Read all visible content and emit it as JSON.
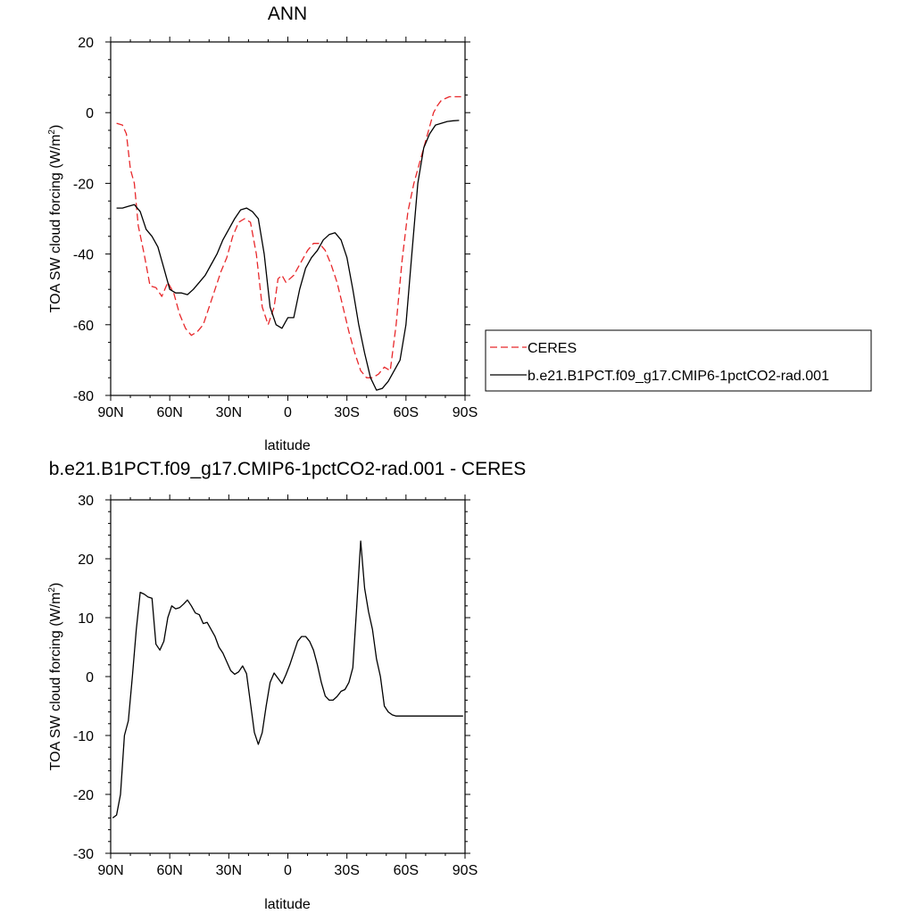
{
  "chart_data": [
    {
      "type": "line",
      "title": "ANN",
      "xlabel": "latitude",
      "ylabel": "TOA SW cloud forcing (W/m",
      "ylabel_sup": "2",
      "ylabel_close": ")",
      "xlim": [
        90,
        -90
      ],
      "ylim": [
        -80,
        20
      ],
      "xticks": [
        90,
        60,
        30,
        0,
        -30,
        -60,
        -90
      ],
      "xtick_labels": [
        "90N",
        "60N",
        "30N",
        "0",
        "30S",
        "60S",
        "90S"
      ],
      "yticks": [
        -80,
        -60,
        -40,
        -20,
        0,
        20
      ],
      "ytick_labels": [
        "-80",
        "-60",
        "-40",
        "-20",
        "0",
        "20"
      ],
      "grid": false,
      "legend": "right",
      "series": [
        {
          "name": "CERES",
          "color": "#e8282b",
          "dash": "dashed",
          "x": [
            87,
            84,
            82,
            80,
            78,
            76,
            73,
            70,
            67,
            64,
            61,
            58,
            55,
            52,
            49,
            46,
            43,
            40,
            37,
            34,
            31,
            28,
            25,
            22,
            19,
            16,
            13,
            10,
            7,
            5,
            3,
            1,
            -1,
            -3,
            -5,
            -7,
            -10,
            -13,
            -16,
            -19,
            -22,
            -25,
            -28,
            -31,
            -34,
            -37,
            -40,
            -43,
            -46,
            -49,
            -52,
            -55,
            -58,
            -61,
            -64,
            -67,
            -70,
            -72,
            -74,
            -76,
            -78,
            -80,
            -82,
            -84,
            -86,
            -88
          ],
          "y": [
            -3,
            -3.5,
            -6,
            -16,
            -20,
            -32,
            -40,
            -49,
            -49.5,
            -52,
            -48,
            -51,
            -57,
            -61,
            -63,
            -62,
            -60,
            -55,
            -50,
            -45,
            -41,
            -35,
            -31,
            -30,
            -31,
            -40,
            -55,
            -60,
            -55,
            -47,
            -46,
            -48,
            -47,
            -46,
            -44,
            -42,
            -39,
            -37,
            -37,
            -39,
            -43,
            -48,
            -55,
            -62,
            -68,
            -73,
            -75,
            -75,
            -74,
            -72,
            -73,
            -60,
            -42,
            -28,
            -20,
            -14,
            -8,
            -4,
            0,
            2,
            3.5,
            4,
            4.5,
            4.5,
            4.5,
            4.5
          ]
        },
        {
          "name": "b.e21.B1PCT.f09_g17.CMIP6-1pctCO2-rad.001",
          "color": "#000000",
          "dash": "solid",
          "x": [
            87,
            84,
            81,
            78,
            75,
            72,
            69,
            66,
            63,
            60,
            57,
            54,
            51,
            48,
            45,
            42,
            39,
            36,
            33,
            30,
            27,
            24,
            21,
            18,
            15,
            12,
            9,
            6,
            3,
            0,
            -3,
            -6,
            -9,
            -12,
            -15,
            -18,
            -21,
            -24,
            -27,
            -30,
            -33,
            -36,
            -39,
            -42,
            -45,
            -48,
            -51,
            -54,
            -57,
            -60,
            -63,
            -66,
            -69,
            -72,
            -75,
            -78,
            -81,
            -84,
            -87
          ],
          "y": [
            -27,
            -27,
            -26.5,
            -26,
            -28,
            -33,
            -35,
            -38,
            -44,
            -50,
            -51,
            -51,
            -51.5,
            -50,
            -48,
            -46,
            -43,
            -40,
            -36,
            -33,
            -30,
            -27.5,
            -27,
            -28,
            -30,
            -40,
            -55,
            -60,
            -61,
            -58,
            -58,
            -50,
            -44,
            -41,
            -39,
            -36,
            -34.5,
            -34,
            -36,
            -41,
            -50,
            -60,
            -68,
            -75,
            -78.5,
            -78,
            -76,
            -73,
            -70,
            -60,
            -40,
            -20,
            -10,
            -6,
            -3.5,
            -3,
            -2.5,
            -2.3,
            -2.2
          ]
        }
      ]
    },
    {
      "type": "line",
      "title": "b.e21.B1PCT.f09_g17.CMIP6-1pctCO2-rad.001 - CERES",
      "xlabel": "latitude",
      "ylabel": "TOA SW cloud forcing (W/m",
      "ylabel_sup": "2",
      "ylabel_close": ")",
      "xlim": [
        90,
        -90
      ],
      "ylim": [
        -30,
        30
      ],
      "xticks": [
        90,
        60,
        30,
        0,
        -30,
        -60,
        -90
      ],
      "xtick_labels": [
        "90N",
        "60N",
        "30N",
        "0",
        "30S",
        "60S",
        "90S"
      ],
      "yticks": [
        -30,
        -20,
        -10,
        0,
        10,
        20,
        30
      ],
      "ytick_labels": [
        "-30",
        "-20",
        "-10",
        "0",
        "10",
        "20",
        "30"
      ],
      "grid": false,
      "series": [
        {
          "color": "#000000",
          "dash": "solid",
          "x": [
            89,
            87,
            85,
            83,
            81,
            79,
            77,
            75,
            73,
            71,
            69,
            67,
            65,
            63,
            61,
            59,
            57,
            55,
            53,
            51,
            49,
            47,
            45,
            43,
            41,
            39,
            37,
            35,
            33,
            31,
            29,
            27,
            25,
            23,
            21,
            19,
            17,
            15,
            13,
            11,
            9,
            7,
            5,
            3,
            1,
            -1,
            -3,
            -5,
            -7,
            -9,
            -11,
            -13,
            -15,
            -17,
            -19,
            -21,
            -23,
            -25,
            -27,
            -29,
            -31,
            -33,
            -35,
            -37,
            -39,
            -41,
            -43,
            -45,
            -47,
            -49,
            -51,
            -53,
            -55,
            -57,
            -59,
            -61,
            -63,
            -65,
            -67,
            -69,
            -71,
            -73,
            -75,
            -77,
            -79,
            -81,
            -83,
            -85,
            -87,
            -89
          ],
          "y": [
            -24,
            -23.5,
            -20,
            -10,
            -7.5,
            0,
            8,
            14.3,
            14,
            13.5,
            13.3,
            5.5,
            4.5,
            6,
            10,
            12,
            11.5,
            11.7,
            12.3,
            13,
            12,
            10.8,
            10.5,
            9,
            9.2,
            8,
            6.8,
            5,
            4,
            2.5,
            1,
            0.4,
            0.8,
            1.8,
            0.5,
            -4.5,
            -9.5,
            -11.5,
            -9.5,
            -5,
            -1,
            0.6,
            -0.3,
            -1.2,
            0.3,
            2,
            4,
            6,
            6.8,
            6.8,
            6,
            4.5,
            2,
            -1,
            -3.3,
            -4,
            -4,
            -3.4,
            -2.5,
            -2.2,
            -1,
            1.5,
            12,
            23,
            15,
            11,
            8,
            3,
            0,
            -5,
            -6,
            -6.5,
            -6.7,
            -6.7,
            -6.7,
            -6.7,
            -6.7,
            -6.7,
            -6.7,
            -6.7,
            -6.7,
            -6.7,
            -6.7,
            -6.7,
            -6.7,
            -6.7,
            -6.7,
            -6.7,
            -6.7,
            -6.7
          ]
        }
      ]
    }
  ]
}
